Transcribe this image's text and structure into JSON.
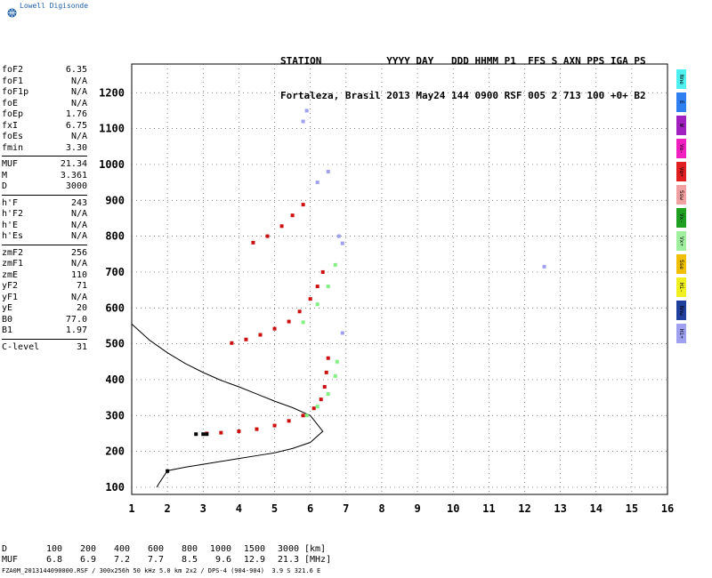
{
  "app": {
    "brand": "Lowell Digisonde",
    "brand_icon": "globe-icon"
  },
  "header": {
    "labels": "STATION           YYYY DAY   DDD HHMM P1  FFS S AXN PPS IGA PS",
    "values": "Fortaleza, Brasil 2013 May24 144 0900 RSF 005 2 713 100 +0+ B2"
  },
  "params_groups": [
    [
      {
        "name": "foF2",
        "value": "6.35"
      },
      {
        "name": "foF1",
        "value": "N/A"
      },
      {
        "name": "foF1p",
        "value": "N/A"
      },
      {
        "name": "foE",
        "value": "N/A"
      },
      {
        "name": "foEp",
        "value": "1.76"
      },
      {
        "name": "fxI",
        "value": "6.75"
      },
      {
        "name": "foEs",
        "value": "N/A"
      },
      {
        "name": "fmin",
        "value": "3.30"
      }
    ],
    [
      {
        "name": "MUF",
        "value": "21.34"
      },
      {
        "name": "M",
        "value": "3.361"
      },
      {
        "name": "D",
        "value": "3000"
      }
    ],
    [
      {
        "name": "h'F",
        "value": "243"
      },
      {
        "name": "h'F2",
        "value": "N/A"
      },
      {
        "name": "h'E",
        "value": "N/A"
      },
      {
        "name": "h'Es",
        "value": "N/A"
      }
    ],
    [
      {
        "name": "zmF2",
        "value": "256"
      },
      {
        "name": "zmF1",
        "value": "N/A"
      },
      {
        "name": "zmE",
        "value": "110"
      },
      {
        "name": "yF2",
        "value": "71"
      },
      {
        "name": "yF1",
        "value": "N/A"
      },
      {
        "name": "yE",
        "value": "20"
      },
      {
        "name": "B0",
        "value": "77.0"
      },
      {
        "name": "B1",
        "value": "1.97"
      }
    ],
    [
      {
        "name": "C-level",
        "value": "31"
      }
    ]
  ],
  "legend": [
    {
      "label": "Nne",
      "color": "#4ff0f0"
    },
    {
      "label": "E",
      "color": "#2f7ff0"
    },
    {
      "label": "W",
      "color": "#a020c0"
    },
    {
      "label": "Vo-",
      "color": "#f020c0"
    },
    {
      "label": "Vo+",
      "color": "#e02020"
    },
    {
      "label": "Ssw",
      "color": "#f0a0a0"
    },
    {
      "label": "Vx-",
      "color": "#20a020"
    },
    {
      "label": "Vx+",
      "color": "#a0f0a0"
    },
    {
      "label": "Sse",
      "color": "#f0c000"
    },
    {
      "label": "Hi-",
      "color": "#f0f020"
    },
    {
      "label": "Nnw",
      "color": "#2040a0"
    },
    {
      "label": "Hi+",
      "color": "#a0a0f0"
    }
  ],
  "bottom_table": {
    "d_label": "D",
    "d_values": [
      "100",
      "200",
      "400",
      "600",
      "800",
      "1000",
      "1500",
      "3000"
    ],
    "d_unit": "[km]",
    "muf_label": "MUF",
    "muf_values": [
      "6.8",
      "6.9",
      "7.2",
      "7.7",
      "8.5",
      "9.6",
      "12.9",
      "21.3"
    ],
    "muf_unit": "[MHz]"
  },
  "footer": {
    "file_info": "FZA0M_2013144090000.RSF / 300x256h 50 kHz 5.0 km 2x2 / DPS-4 (904-904)  3.9 S 321.6 E"
  },
  "chart_data": {
    "type": "scatter",
    "xlim": [
      1,
      16
    ],
    "ylim": [
      80,
      1280
    ],
    "xticks": [
      "1",
      "2",
      "3",
      "4",
      "5",
      "6",
      "7",
      "8",
      "9",
      "10",
      "11",
      "12",
      "13",
      "14",
      "15",
      "16"
    ],
    "yticks": [
      "100",
      "200",
      "300",
      "400",
      "500",
      "600",
      "700",
      "800",
      "900",
      "1000",
      "1100",
      "1200"
    ],
    "grid": true,
    "series": [
      {
        "color": "#cc1010",
        "points": [
          [
            3.1,
            250
          ],
          [
            3.5,
            252
          ],
          [
            4.0,
            256
          ],
          [
            4.5,
            262
          ],
          [
            5.0,
            272
          ],
          [
            5.4,
            285
          ],
          [
            5.8,
            300
          ],
          [
            6.1,
            320
          ],
          [
            6.3,
            345
          ],
          [
            6.4,
            380
          ],
          [
            6.45,
            420
          ],
          [
            6.5,
            460
          ],
          [
            3.8,
            502
          ],
          [
            4.2,
            512
          ],
          [
            4.6,
            525
          ],
          [
            5.0,
            542
          ],
          [
            5.4,
            562
          ],
          [
            5.7,
            590
          ],
          [
            6.0,
            625
          ],
          [
            6.2,
            660
          ],
          [
            6.35,
            700
          ],
          [
            4.4,
            782
          ],
          [
            4.8,
            800
          ],
          [
            5.2,
            828
          ],
          [
            5.5,
            858
          ],
          [
            5.8,
            888
          ]
        ]
      },
      {
        "color": "#80f080",
        "points": [
          [
            5.9,
            300
          ],
          [
            6.2,
            325
          ],
          [
            6.5,
            360
          ],
          [
            6.7,
            410
          ],
          [
            6.75,
            450
          ],
          [
            5.8,
            560
          ],
          [
            6.2,
            610
          ],
          [
            6.5,
            660
          ],
          [
            6.7,
            720
          ]
        ]
      },
      {
        "color": "#a0a0f0",
        "points": [
          [
            6.8,
            800
          ],
          [
            6.9,
            780
          ],
          [
            6.2,
            950
          ],
          [
            6.5,
            980
          ],
          [
            5.8,
            1120
          ],
          [
            5.9,
            1150
          ],
          [
            12.55,
            715
          ],
          [
            6.9,
            530
          ]
        ]
      },
      {
        "color": "#000000",
        "points": [
          [
            2.8,
            248
          ],
          [
            3.0,
            248
          ],
          [
            3.1,
            248
          ],
          [
            2.0,
            145
          ]
        ]
      }
    ],
    "profile_curve": [
      [
        1.0,
        555
      ],
      [
        1.5,
        510
      ],
      [
        2.0,
        475
      ],
      [
        2.5,
        445
      ],
      [
        3.0,
        420
      ],
      [
        3.5,
        398
      ],
      [
        4.0,
        380
      ],
      [
        4.5,
        360
      ],
      [
        5.0,
        340
      ],
      [
        5.5,
        322
      ],
      [
        6.0,
        300
      ],
      [
        6.35,
        256
      ],
      [
        6.0,
        225
      ],
      [
        5.5,
        208
      ],
      [
        5.0,
        196
      ],
      [
        4.5,
        188
      ],
      [
        4.0,
        180
      ],
      [
        3.5,
        172
      ],
      [
        3.0,
        164
      ],
      [
        2.5,
        156
      ],
      [
        2.0,
        146
      ],
      [
        1.76,
        110
      ],
      [
        1.7,
        100
      ]
    ]
  }
}
